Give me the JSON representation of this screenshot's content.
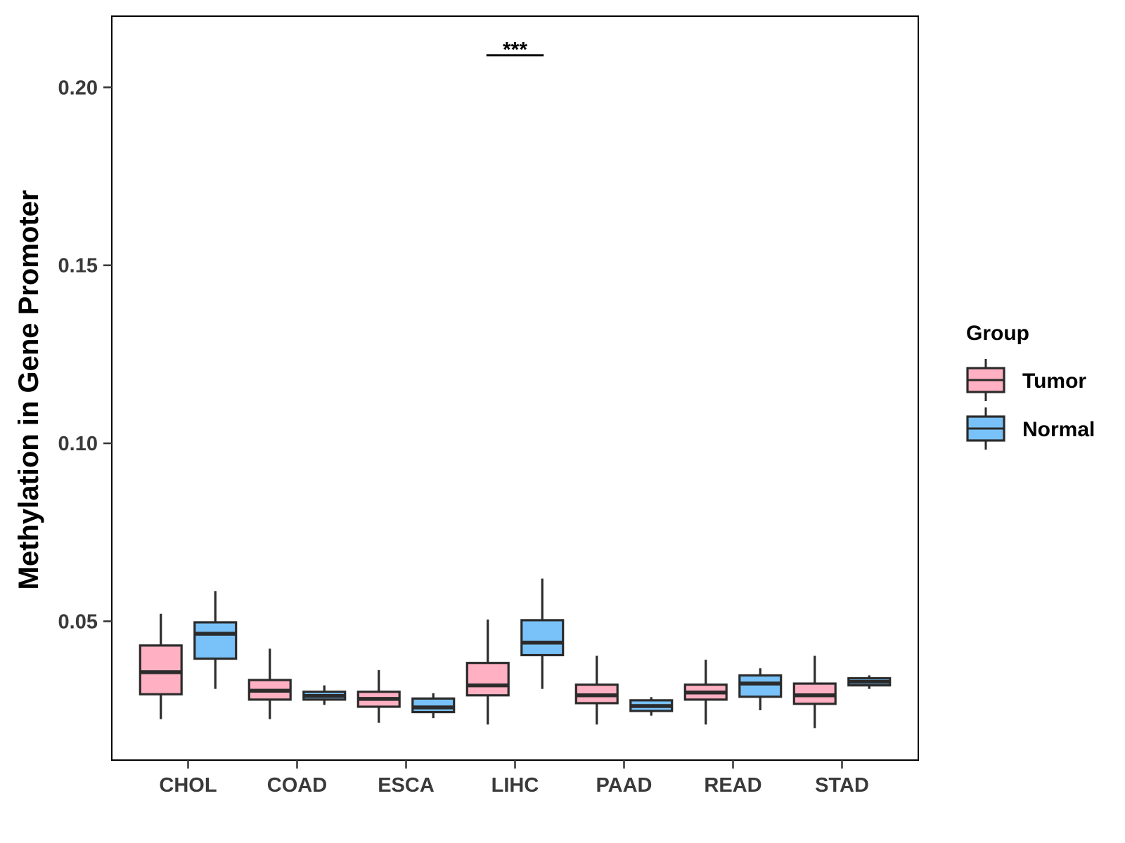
{
  "chart_data": {
    "type": "boxplot",
    "title": "",
    "xlabel": "",
    "ylabel": "Methylation in Gene Promoter",
    "ylim": [
      0.011,
      0.22
    ],
    "yticks": [
      0.05,
      0.1,
      0.15,
      0.2
    ],
    "ytick_labels": [
      "0.05",
      "0.10",
      "0.15",
      "0.20"
    ],
    "categories": [
      "CHOL",
      "COAD",
      "ESCA",
      "LIHC",
      "PAAD",
      "READ",
      "STAD"
    ],
    "legend": {
      "title": "Group",
      "position": "right",
      "entries": [
        "Tumor",
        "Normal"
      ]
    },
    "colors": {
      "Tumor": "#ffb0c2",
      "Normal": "#78c2f9",
      "outline": "#2b2b2b"
    },
    "series": [
      {
        "name": "Tumor",
        "boxes": [
          {
            "category": "CHOL",
            "whisker_low": 0.0225,
            "q1": 0.0295,
            "median": 0.0357,
            "q3": 0.0432,
            "whisker_high": 0.0521
          },
          {
            "category": "COAD",
            "whisker_low": 0.0225,
            "q1": 0.028,
            "median": 0.0305,
            "q3": 0.0335,
            "whisker_high": 0.0423
          },
          {
            "category": "ESCA",
            "whisker_low": 0.0215,
            "q1": 0.026,
            "median": 0.0282,
            "q3": 0.0302,
            "whisker_high": 0.0363
          },
          {
            "category": "LIHC",
            "whisker_low": 0.021,
            "q1": 0.0292,
            "median": 0.032,
            "q3": 0.0383,
            "whisker_high": 0.0505
          },
          {
            "category": "PAAD",
            "whisker_low": 0.021,
            "q1": 0.027,
            "median": 0.0292,
            "q3": 0.0322,
            "whisker_high": 0.0403
          },
          {
            "category": "READ",
            "whisker_low": 0.021,
            "q1": 0.028,
            "median": 0.03,
            "q3": 0.0322,
            "whisker_high": 0.0392
          },
          {
            "category": "STAD",
            "whisker_low": 0.02,
            "q1": 0.0268,
            "median": 0.0292,
            "q3": 0.0325,
            "whisker_high": 0.0403
          }
        ]
      },
      {
        "name": "Normal",
        "boxes": [
          {
            "category": "CHOL",
            "whisker_low": 0.031,
            "q1": 0.0395,
            "median": 0.0465,
            "q3": 0.0497,
            "whisker_high": 0.0585
          },
          {
            "category": "COAD",
            "whisker_low": 0.0265,
            "q1": 0.028,
            "median": 0.029,
            "q3": 0.0302,
            "whisker_high": 0.032
          },
          {
            "category": "ESCA",
            "whisker_low": 0.0228,
            "q1": 0.0245,
            "median": 0.0258,
            "q3": 0.0283,
            "whisker_high": 0.0298
          },
          {
            "category": "LIHC",
            "whisker_low": 0.031,
            "q1": 0.0405,
            "median": 0.044,
            "q3": 0.0503,
            "whisker_high": 0.062
          },
          {
            "category": "PAAD",
            "whisker_low": 0.0235,
            "q1": 0.0248,
            "median": 0.0262,
            "q3": 0.0278,
            "whisker_high": 0.0287
          },
          {
            "category": "READ",
            "whisker_low": 0.025,
            "q1": 0.0288,
            "median": 0.0325,
            "q3": 0.0348,
            "whisker_high": 0.0368
          },
          {
            "category": "STAD",
            "whisker_low": 0.031,
            "q1": 0.032,
            "median": 0.033,
            "q3": 0.034,
            "whisker_high": 0.0348
          }
        ]
      }
    ],
    "annotations": [
      {
        "category": "LIHC",
        "text": "***",
        "y": 0.209
      }
    ]
  }
}
